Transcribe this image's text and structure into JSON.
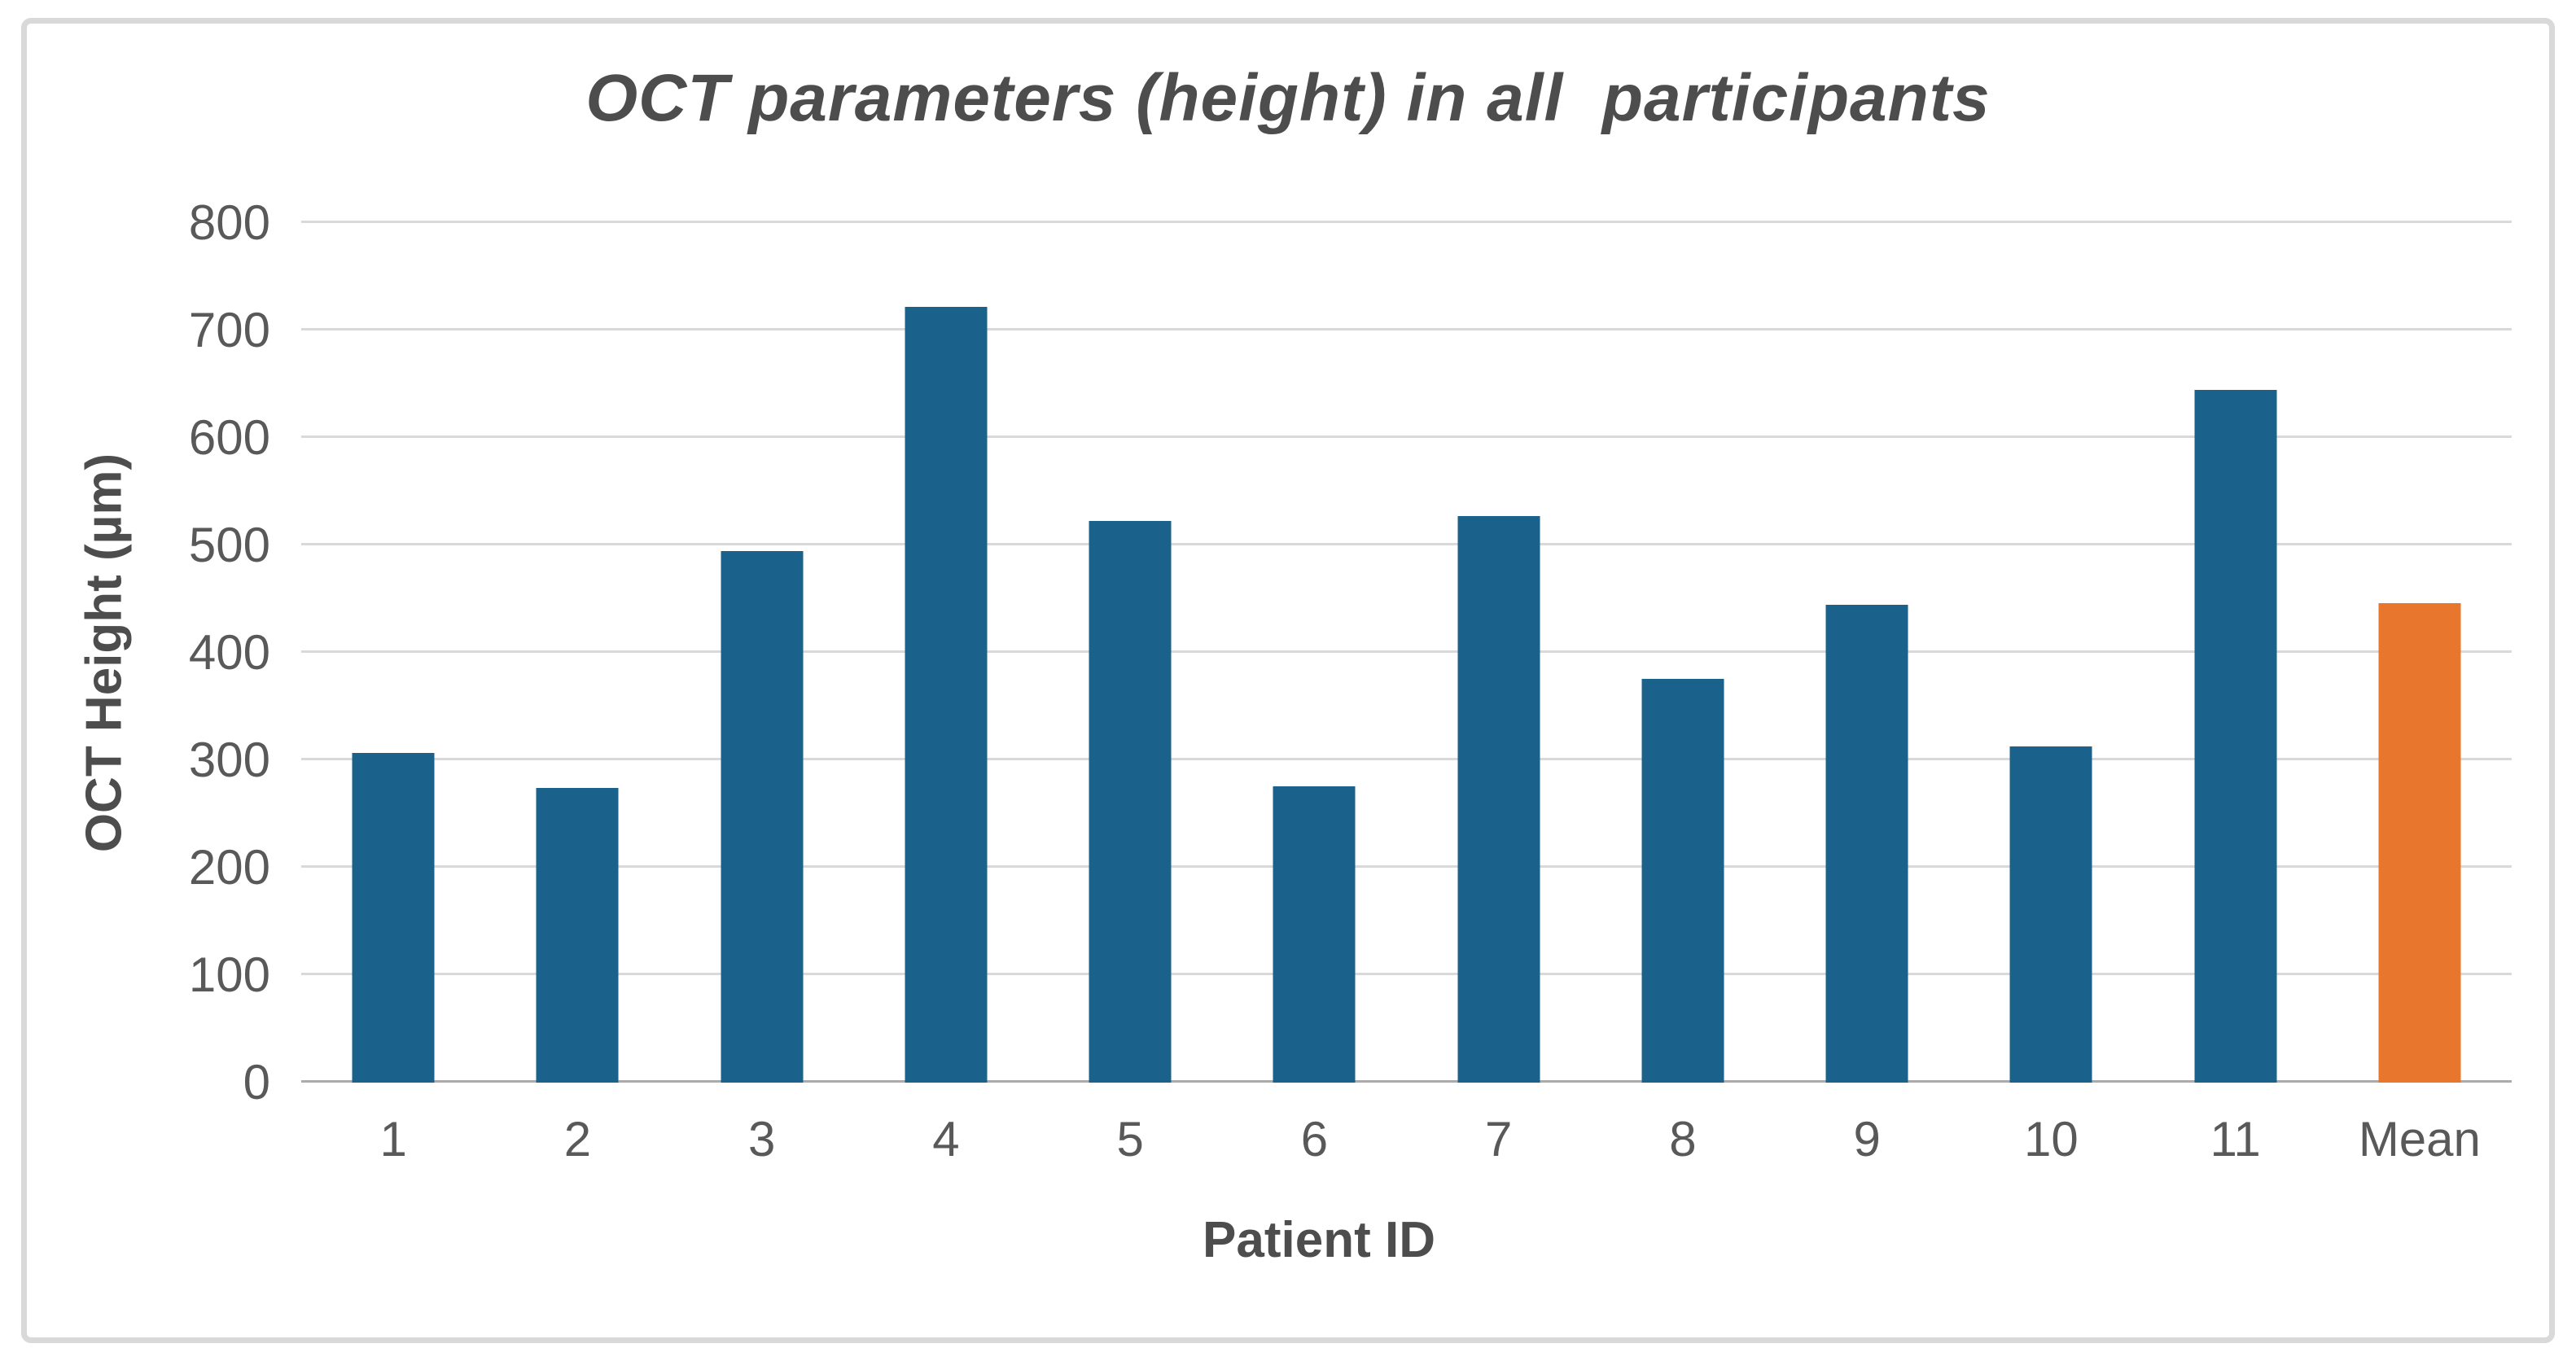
{
  "chart_data": {
    "type": "bar",
    "title": "OCT parameters (height) in all  participants",
    "xlabel": "Patient ID",
    "ylabel": "OCT Height (µm)",
    "categories": [
      "1",
      "2",
      "3",
      "4",
      "5",
      "6",
      "7",
      "8",
      "9",
      "10",
      "11",
      "Mean"
    ],
    "values": [
      307,
      274,
      495,
      722,
      523,
      276,
      527,
      376,
      445,
      313,
      645,
      446
    ],
    "ylim": [
      0,
      800
    ],
    "yticks": [
      0,
      100,
      200,
      300,
      400,
      500,
      600,
      700,
      800
    ],
    "grid": true,
    "legend": false,
    "highlight_category": "Mean",
    "colors": {
      "bar": "#1A628C",
      "highlight_bar": "#E8762C",
      "gridline": "#D9D9D9",
      "axis_line": "#ABABAB",
      "tick_text": "#595959",
      "title_text": "#4D4D4D",
      "frame_border": "#D9D9D9",
      "background": "#FFFFFF"
    }
  }
}
